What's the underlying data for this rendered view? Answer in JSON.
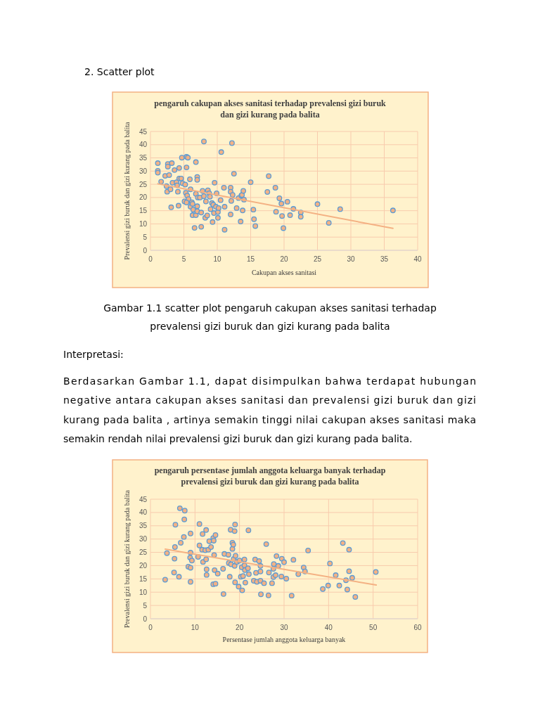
{
  "chart_data": [
    {
      "type": "scatter",
      "title": "pengaruh cakupan akses sanitasi terhadap prevalensi gizi buruk dan gizi kurang pada balita",
      "xlabel": "Cakupan akses sanitasi",
      "ylabel": "Prevalensi gizi buruk dan gizi kurang pada balita",
      "xlim": [
        0,
        40
      ],
      "ylim": [
        0,
        45
      ],
      "xticks": [
        0,
        5,
        10,
        15,
        20,
        25,
        30,
        35,
        40
      ],
      "yticks": [
        0,
        5,
        10,
        15,
        20,
        25,
        30,
        35,
        40,
        45
      ],
      "grid": true,
      "annotations": [
        "2. Scatter plot",
        "Gambar 1.1 scatter plot pengaruh cakupan akses sanitasi terhadap prevalensi gizi buruk dan gizi kurang pada balita",
        "Interpretasi:",
        "Berdasarkan Gambar 1.1,  dapat disimpulkan bahwa terdapat hubungan negative antara cakupan akses sanitasi dan prevalensi gizi buruk dan gizi kurang pada balita , artinya semakin tinggi nilai cakupan akses sanitasi maka semakin rendah nilai prevalensi gizi buruk dan gizi kurang pada balita."
      ],
      "series": [
        {
          "marker": "circle",
          "color": "#f4b183",
          "x": [
            1.1,
            1.1,
            1.1,
            1.6,
            2.2,
            2.4,
            2.5,
            2.8,
            2.6,
            2.6,
            3.2,
            3.1,
            3.3,
            3.0,
            3.6,
            3.9,
            4.1,
            4.0,
            4.3,
            4.3,
            4.2,
            4.6,
            4.7,
            4.8,
            5.1,
            5.2,
            5.3,
            5.4,
            5.4,
            5.6,
            5.5,
            5.7,
            5.4,
            5.9,
            6.0,
            6.0,
            6.2,
            6.3,
            6.3,
            6.4,
            6.6,
            6.8,
            6.8,
            6.8,
            7.0,
            7.0,
            7.0,
            7.0,
            7.1,
            7.4,
            7.6,
            7.6,
            7.8,
            8.0,
            8.0,
            8.2,
            8.3,
            8.5,
            8.6,
            8.8,
            8.9,
            9.0,
            9.2,
            9.3,
            9.4,
            9.6,
            9.5,
            9.8,
            9.9,
            10.1,
            10.2,
            10.1,
            10.5,
            10.6,
            11.0,
            11.1,
            11.1,
            12.0,
            12.0,
            12.0,
            12.1,
            12.2,
            12.3,
            12.5,
            12.9,
            13.2,
            13.5,
            13.6,
            13.7,
            13.8,
            13.9,
            14.0,
            15.0,
            15.4,
            15.5,
            15.7,
            17.7,
            17.5,
            18.7,
            19.3,
            19.6,
            20.5,
            21.4,
            18.8,
            19.7,
            20.9,
            22.5,
            22.5,
            19.9,
            25.0,
            26.7,
            28.4,
            36.3
          ],
          "values": [
            33.0,
            30.1,
            29.4,
            26.0,
            28.2,
            24.3,
            22.2,
            28.5,
            32.7,
            31.7,
            33.0,
            16.3,
            25.6,
            23.1,
            30.4,
            25.8,
            22.2,
            24.6,
            31.2,
            27.2,
            16.9,
            27.2,
            35.1,
            25.4,
            18.5,
            24.9,
            21.8,
            35.4,
            31.4,
            35.1,
            20.7,
            19.4,
            18.1,
            26.9,
            23.1,
            16.5,
            18.2,
            17.6,
            13.3,
            15.4,
            8.5,
            33.4,
            21.4,
            13.3,
            27.8,
            26.7,
            16.7,
            14.8,
            20.0,
            20.0,
            14.3,
            8.9,
            22.5,
            41.2,
            20.5,
            12.3,
            18.5,
            13.2,
            22.7,
            21.6,
            20.3,
            15.6,
            17.9,
            10.7,
            17.3,
            25.6,
            14.1,
            16.5,
            21.6,
            14.5,
            16.0,
            12.3,
            19.0,
            37.2,
            23.7,
            16.5,
            7.8,
            23.7,
            22.2,
            13.6,
            18.7,
            40.6,
            21.0,
            29.0,
            16.0,
            19.8,
            10.9,
            20.7,
            21.0,
            15.1,
            22.5,
            19.2,
            25.8,
            15.4,
            11.8,
            9.2,
            28.1,
            22.1,
            23.7,
            19.7,
            17.7,
            18.4,
            15.7,
            14.6,
            13.0,
            13.3,
            14.3,
            12.7,
            8.4,
            17.5,
            10.4,
            15.6,
            15.1
          ]
        },
        {
          "type": "line",
          "color": "#f4b183",
          "x": [
            1.1,
            36.3
          ],
          "values": [
            25.2,
            8.3
          ]
        }
      ]
    },
    {
      "type": "scatter",
      "title": "pengaruh persentase jumlah anggota keluarga banyak terhadap prevalensi gizi buruk dan gizi kurang pada balita",
      "xlabel": "Persentase jumlah anggota keluarga banyak",
      "ylabel": "Prevalensi gizi buruk dan gizi kurang pada balita",
      "xlim": [
        0,
        60
      ],
      "ylim": [
        0,
        45
      ],
      "xticks": [
        0,
        10,
        20,
        30,
        40,
        50,
        60
      ],
      "yticks": [
        0,
        5,
        10,
        15,
        20,
        25,
        30,
        35,
        40,
        45
      ],
      "grid": true,
      "series": [
        {
          "marker": "circle",
          "color": "#f4b183",
          "x": [
            3.3,
            3.7,
            5.3,
            5.4,
            5.5,
            5.6,
            6.4,
            6.6,
            6.8,
            7.5,
            7.6,
            7.7,
            8.5,
            9.0,
            9.0,
            9.0,
            9.0,
            8.9,
            9.3,
            10.7,
            11.0,
            11.0,
            11.6,
            11.7,
            11.8,
            12.3,
            12.5,
            12.5,
            12.6,
            12.6,
            13.0,
            13.2,
            13.6,
            14.1,
            14.1,
            14.2,
            14.3,
            14.6,
            14.4,
            14.6,
            15.1,
            16.3,
            16.4,
            16.6,
            17.5,
            17.6,
            17.8,
            18.0,
            18.1,
            18.4,
            18.4,
            18.6,
            18.7,
            18.9,
            19.0,
            18.9,
            19.0,
            19.1,
            19.4,
            19.8,
            20.0,
            20.3,
            20.5,
            20.6,
            20.8,
            21.1,
            21.1,
            21.3,
            21.2,
            21.9,
            22.0,
            22.1,
            23.2,
            23.5,
            23.7,
            23.9,
            24.4,
            24.7,
            24.7,
            24.7,
            24.8,
            25.5,
            26.0,
            26.5,
            26.6,
            27.3,
            27.7,
            27.6,
            27.6,
            28.3,
            28.1,
            28.7,
            29.4,
            29.5,
            30.0,
            30.5,
            31.7,
            32.1,
            33.2,
            34.4,
            34.7,
            35.4,
            38.7,
            39.9,
            40.3,
            41.6,
            42.4,
            43.2,
            43.9,
            44.2,
            44.6,
            44.6,
            45.3,
            46.0,
            50.6
          ],
          "values": [
            14.7,
            24.7,
            17.4,
            22.6,
            27.0,
            35.4,
            15.8,
            41.6,
            28.6,
            30.8,
            37.4,
            40.7,
            19.6,
            19.2,
            13.9,
            32.1,
            24.9,
            23.0,
            21.9,
            23.3,
            35.7,
            27.6,
            26.0,
            31.9,
            21.4,
            25.8,
            33.4,
            22.4,
            18.6,
            16.5,
            26.0,
            29.2,
            27.0,
            13.0,
            30.4,
            29.4,
            24.0,
            31.5,
            18.3,
            13.2,
            17.0,
            18.8,
            9.3,
            24.4,
            24.1,
            21.0,
            15.8,
            33.5,
            20.5,
            26.3,
            28.6,
            27.9,
            22.5,
            33.0,
            13.7,
            19.9,
            35.5,
            23.7,
            21.4,
            12.1,
            21.9,
            15.8,
            19.4,
            10.7,
            16.1,
            22.3,
            20.1,
            13.6,
            18.3,
            19.0,
            33.3,
            16.8,
            14.3,
            22.3,
            17.3,
            13.9,
            21.7,
            19.9,
            14.3,
            17.8,
            9.2,
            13.4,
            28.1,
            8.8,
            17.4,
            13.4,
            20.6,
            18.8,
            15.7,
            23.6,
            16.4,
            19.9,
            15.9,
            22.6,
            21.3,
            15.1,
            8.7,
            22.2,
            16.8,
            19.3,
            17.8,
            25.7,
            11.2,
            12.5,
            20.8,
            16.4,
            12.5,
            28.5,
            14.5,
            11.0,
            26.0,
            17.9,
            15.4,
            8.2,
            17.6
          ]
        },
        {
          "type": "line",
          "color": "#f4b183",
          "x": [
            3.3,
            50.7
          ],
          "values": [
            26.2,
            12.7
          ]
        }
      ]
    }
  ]
}
